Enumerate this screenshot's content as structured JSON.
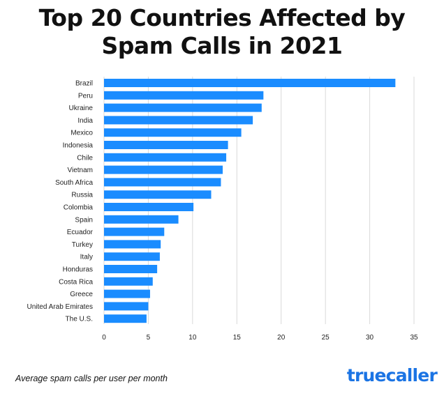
{
  "header": {
    "title_line1": "Top 20 Countries Affected by",
    "title_line2": "Spam Calls in 2021"
  },
  "footer": {
    "note": "Average spam calls per user per month",
    "brand": "truecaller"
  },
  "colors": {
    "bar": "#1a8cff",
    "grid": "#d9d9d9",
    "brand": "#1b74e4"
  },
  "chart_data": {
    "type": "bar",
    "orientation": "horizontal",
    "title": "Top 20 Countries Affected by Spam Calls in 2021",
    "xlabel": "Average spam calls per user per month",
    "ylabel": "",
    "xlim": [
      0,
      35
    ],
    "xticks": [
      0,
      5,
      10,
      15,
      20,
      25,
      30,
      35
    ],
    "grid": true,
    "categories": [
      "Brazil",
      "Peru",
      "Ukraine",
      "India",
      "Mexico",
      "Indonesia",
      "Chile",
      "Vietnam",
      "South Africa",
      "Russia",
      "Colombia",
      "Spain",
      "Ecuador",
      "Turkey",
      "Italy",
      "Honduras",
      "Costa Rica",
      "Greece",
      "United Arab Emirates",
      "The U.S."
    ],
    "values": [
      32.9,
      18.0,
      17.8,
      16.8,
      15.5,
      14.0,
      13.8,
      13.4,
      13.2,
      12.1,
      10.1,
      8.4,
      6.8,
      6.4,
      6.3,
      6.0,
      5.5,
      5.2,
      5.0,
      4.8
    ]
  }
}
